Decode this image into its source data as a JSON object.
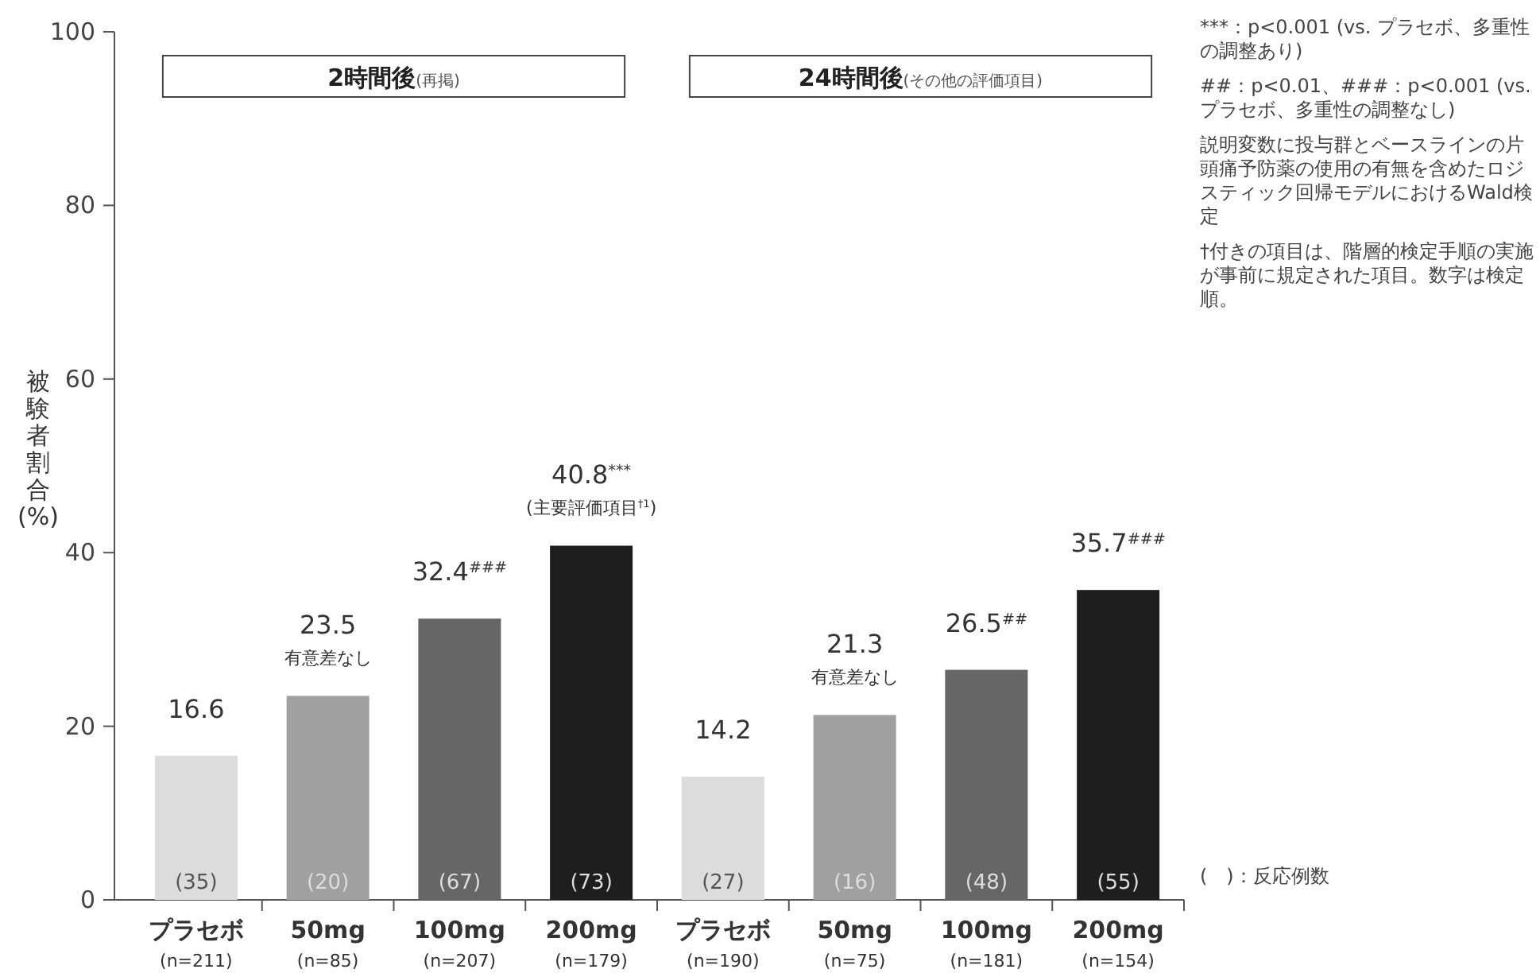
{
  "chart_data": {
    "type": "bar",
    "ylabel": "被験者割合(%)",
    "categories": [
      "プラセボ\n(n=211)",
      "50mg\n(n=85)",
      "100mg\n(n=207)",
      "200mg\n(n=179)",
      "プラセボ\n(n=190)",
      "50mg\n(n=75)",
      "100mg\n(n=181)",
      "200mg\n(n=154)"
    ],
    "values": [
      16.6,
      23.5,
      32.4,
      40.8,
      14.2,
      21.3,
      26.5,
      35.7
    ],
    "colors": [
      "#dcdcdc",
      "#a0a0a0",
      "#666666",
      "#1e1e1e",
      "#dcdcdc",
      "#a0a0a0",
      "#666666",
      "#1e1e1e"
    ],
    "value_labels": [
      "16.6",
      "23.5\n有意差なし",
      "32.4$^{###}$",
      "40.8$^{***}$\n(主要評価項目$^{†1}$)",
      "14.2",
      "21.3\n有意差なし",
      "26.5$^{##}$",
      "35.7$^{###}$"
    ],
    "ylim": [
      0,
      100
    ],
    "yticks": [
      0,
      20,
      40,
      60,
      80,
      100
    ],
    "grid": false,
    "annotations": [
      "2時間後(再掲)",
      "24時間後(その他の評価項目)",
      "***：p<0.001 (vs. プラセボ、多重性の調整あり)",
      "##：p<0.01、###：p<0.001 (vs. プラセボ、多重性の調整なし)",
      "説明変数に投与群とベースラインの片頭痛予防薬の使用の有無を含めたロジスティック回帰モデルにおけるWald検定",
      "†付きの項目は、階層的検定手順の実施が事前に規定された項目。数字は検定順。",
      "(　)：反応例数",
      {
        "text": "(35)",
        "x": "プラセボ\n(n=211)",
        "y": 0
      },
      {
        "text": "(20)",
        "x": "50mg\n(n=85)",
        "y": 0
      },
      {
        "text": "(67)",
        "x": "100mg\n(n=207)",
        "y": 0
      },
      {
        "text": "(73)",
        "x": "200mg\n(n=179)",
        "y": 0
      },
      {
        "text": "(27)",
        "x": "プラセボ\n(n=190)",
        "y": 0
      },
      {
        "text": "(16)",
        "x": "50mg\n(n=75)",
        "y": 0
      },
      {
        "text": "(48)",
        "x": "100mg\n(n=181)",
        "y": 0
      },
      {
        "text": "(55)",
        "x": "200mg\n(n=154)",
        "y": 0
      }
    ]
  }
}
